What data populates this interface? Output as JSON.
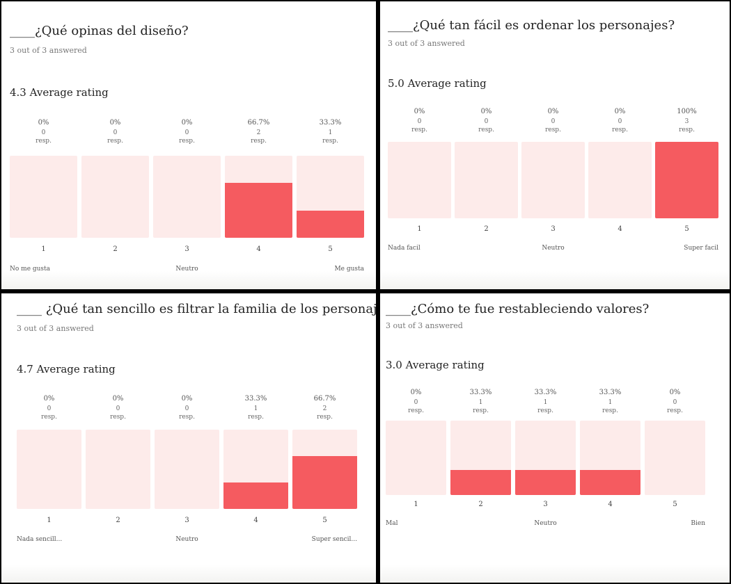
{
  "chart_data": [
    {
      "type": "bar",
      "title": "____¿Qué opinas del diseño?",
      "answered": "3 out of 3 answered",
      "average": "4.3 Average rating",
      "categories": [
        "1",
        "2",
        "3",
        "4",
        "5"
      ],
      "percent_labels": [
        "0%",
        "0%",
        "0%",
        "66.7%",
        "33.3%"
      ],
      "values": [
        0,
        0,
        0,
        66.7,
        33.3
      ],
      "counts": [
        "0",
        "0",
        "0",
        "2",
        "1"
      ],
      "resp_label": "resp.",
      "scale_labels": {
        "low": "No me gusta",
        "mid": "Neutro",
        "high": "Me gusta"
      },
      "ylim": [
        0,
        100
      ],
      "color": "#f55b60",
      "track_color": "#fdebea"
    },
    {
      "type": "bar",
      "title": "____¿Qué tan fácil es ordenar los personajes?",
      "answered": "3 out of 3 answered",
      "average": "5.0 Average rating",
      "categories": [
        "1",
        "2",
        "3",
        "4",
        "5"
      ],
      "percent_labels": [
        "0%",
        "0%",
        "0%",
        "0%",
        "100%"
      ],
      "values": [
        0,
        0,
        0,
        0,
        100
      ],
      "counts": [
        "0",
        "0",
        "0",
        "0",
        "3"
      ],
      "resp_label": "resp.",
      "scale_labels": {
        "low": "Nada facil",
        "mid": "Neutro",
        "high": "Super facil"
      },
      "ylim": [
        0,
        100
      ],
      "color": "#f55b60",
      "track_color": "#fdebea"
    },
    {
      "type": "bar",
      "title": "____ ¿Qué tan sencillo es filtrar la familia de los personajes?",
      "answered": "3 out of 3 answered",
      "average": "4.7 Average rating",
      "categories": [
        "1",
        "2",
        "3",
        "4",
        "5"
      ],
      "percent_labels": [
        "0%",
        "0%",
        "0%",
        "33.3%",
        "66.7%"
      ],
      "values": [
        0,
        0,
        0,
        33.3,
        66.7
      ],
      "counts": [
        "0",
        "0",
        "0",
        "1",
        "2"
      ],
      "resp_label": "resp.",
      "scale_labels": {
        "low": "Nada sencill...",
        "mid": "Neutro",
        "high": "Super sencil..."
      },
      "ylim": [
        0,
        100
      ],
      "color": "#f55b60",
      "track_color": "#fdebea"
    },
    {
      "type": "bar",
      "title": "____¿Cómo te fue restableciendo valores?",
      "answered": "3 out of 3 answered",
      "average": "3.0 Average rating",
      "categories": [
        "1",
        "2",
        "3",
        "4",
        "5"
      ],
      "percent_labels": [
        "0%",
        "33.3%",
        "33.3%",
        "33.3%",
        "0%"
      ],
      "values": [
        0,
        33.3,
        33.3,
        33.3,
        0
      ],
      "counts": [
        "0",
        "1",
        "1",
        "1",
        "0"
      ],
      "resp_label": "resp.",
      "scale_labels": {
        "low": "Mal",
        "mid": "Neutro",
        "high": "Bien"
      },
      "ylim": [
        0,
        100
      ],
      "color": "#f55b60",
      "track_color": "#fdebea"
    }
  ]
}
